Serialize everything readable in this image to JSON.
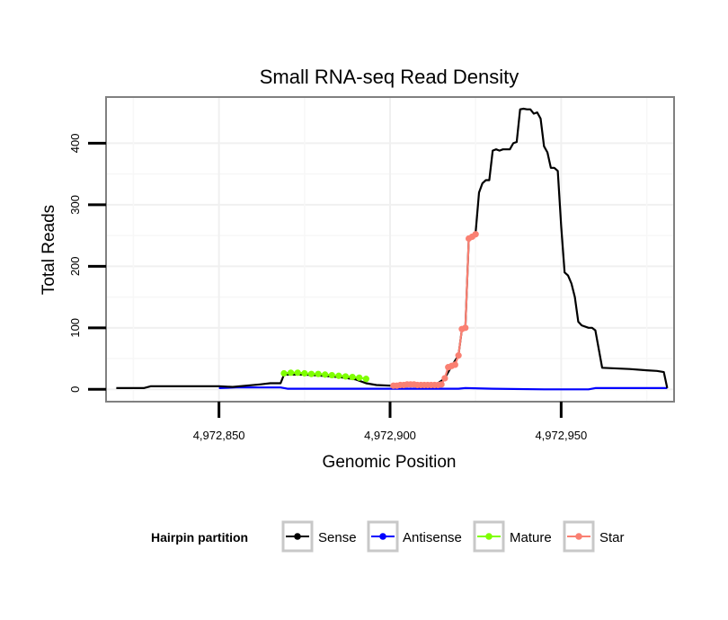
{
  "chart_data": {
    "type": "line",
    "title": "Small RNA-seq Read Density",
    "xlabel": "Genomic Position",
    "ylabel": "Total Reads",
    "xlim": [
      4972817,
      4972983
    ],
    "ylim": [
      -20,
      475
    ],
    "xticks": [
      4972850,
      4972900,
      4972950
    ],
    "xtick_labels": [
      "4,972,850",
      "4,972,900",
      "4,972,950"
    ],
    "yticks": [
      0,
      100,
      200,
      300,
      400
    ],
    "ytick_labels": [
      "0",
      "100",
      "200",
      "300",
      "400"
    ],
    "grid": true,
    "legend": {
      "title": "Hairpin partition",
      "position": "bottom",
      "entries": [
        "Sense",
        "Antisense",
        "Mature",
        "Star"
      ]
    },
    "series": [
      {
        "name": "Sense",
        "color": "#000000",
        "marker": false,
        "x": [
          4972820,
          4972828,
          4972830,
          4972842,
          4972850,
          4972854,
          4972858,
          4972862,
          4972865,
          4972868,
          4972869,
          4972875,
          4972880,
          4972885,
          4972890,
          4972893,
          4972896,
          4972900,
          4972905,
          4972910,
          4972914,
          4972916,
          4972918,
          4972920,
          4972921,
          4972922,
          4972923,
          4972924,
          4972925,
          4972926,
          4972927,
          4972928,
          4972929,
          4972930,
          4972931,
          4972932,
          4972933,
          4972934,
          4972935,
          4972936,
          4972937,
          4972938,
          4972939,
          4972940,
          4972941,
          4972942,
          4972943,
          4972944,
          4972945,
          4972946,
          4972947,
          4972948,
          4972949,
          4972950,
          4972951,
          4972952,
          4972953,
          4972954,
          4972955,
          4972956,
          4972958,
          4972959,
          4972960,
          4972962,
          4972970,
          4972975,
          4972978,
          4972980,
          4972981
        ],
        "y": [
          2,
          2,
          5,
          5,
          5,
          4,
          6,
          8,
          10,
          10,
          24,
          24,
          22,
          20,
          16,
          10,
          7,
          6,
          6,
          8,
          10,
          18,
          38,
          55,
          98,
          100,
          245,
          250,
          255,
          320,
          335,
          340,
          340,
          388,
          390,
          388,
          390,
          390,
          390,
          400,
          402,
          455,
          456,
          455,
          455,
          448,
          450,
          440,
          395,
          385,
          360,
          360,
          355,
          265,
          190,
          185,
          172,
          150,
          110,
          104,
          100,
          100,
          96,
          35,
          33,
          31,
          30,
          28,
          2
        ]
      },
      {
        "name": "Antisense",
        "color": "#0000ff",
        "marker": false,
        "x": [
          4972850,
          4972855,
          4972868,
          4972870,
          4972920,
          4972922,
          4972930,
          4972945,
          4972958,
          4972960,
          4972981
        ],
        "y": [
          2,
          3,
          3,
          1,
          1,
          2,
          1,
          0,
          0,
          2,
          2
        ]
      },
      {
        "name": "Mature",
        "color": "#7fff00",
        "marker": true,
        "x": [
          4972869,
          4972871,
          4972873,
          4972875,
          4972877,
          4972879,
          4972881,
          4972883,
          4972885,
          4972887,
          4972889,
          4972891,
          4972893
        ],
        "y": [
          26,
          27,
          27,
          26,
          25,
          25,
          24,
          23,
          22,
          21,
          20,
          19,
          17
        ]
      },
      {
        "name": "Star",
        "color": "#fa8072",
        "marker": true,
        "x": [
          4972901,
          4972902,
          4972903,
          4972904,
          4972905,
          4972906,
          4972907,
          4972908,
          4972909,
          4972910,
          4972911,
          4972912,
          4972913,
          4972914,
          4972915,
          4972916,
          4972917,
          4972918,
          4972919,
          4972920,
          4972921,
          4972922,
          4972923,
          4972924,
          4972925
        ],
        "y": [
          6,
          6,
          7,
          7,
          8,
          8,
          8,
          7,
          7,
          7,
          7,
          7,
          7,
          7,
          8,
          18,
          36,
          38,
          40,
          55,
          98,
          100,
          245,
          248,
          252
        ]
      }
    ]
  }
}
